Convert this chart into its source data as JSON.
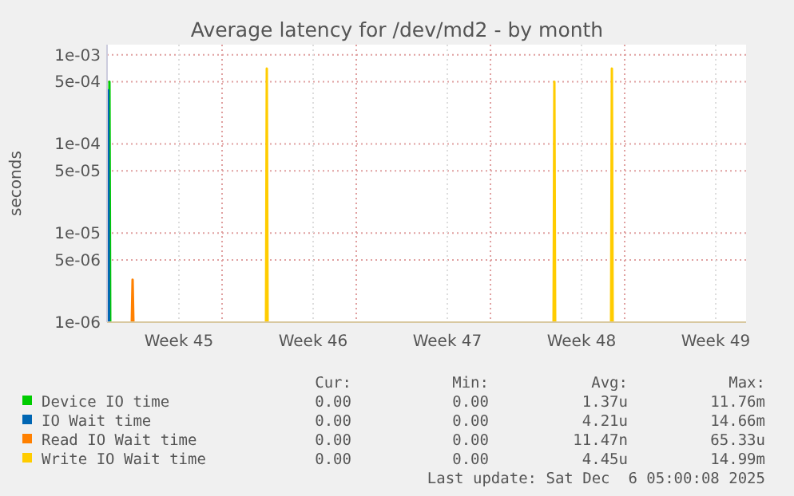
{
  "chart_data": {
    "type": "line",
    "title": "Average latency for /dev/md2 - by month",
    "ylabel": "seconds",
    "log": true,
    "grid": true,
    "legend": "bottom",
    "marker": "none",
    "line_style": "solid",
    "xlim": [
      "2025-11-04T00:00",
      "2025-12-07T08:00"
    ],
    "xticks": [
      {
        "value": "2025-11-07T18:00",
        "label": "Week 45"
      },
      {
        "value": "2025-11-10T00:00",
        "label": null
      },
      {
        "value": "2025-11-14T18:00",
        "label": "Week 46"
      },
      {
        "value": "2025-11-17T00:00",
        "label": null
      },
      {
        "value": "2025-11-21T18:00",
        "label": "Week 47"
      },
      {
        "value": "2025-11-24T00:00",
        "label": null
      },
      {
        "value": "2025-11-28T18:00",
        "label": "Week 48"
      },
      {
        "value": "2025-12-01T00:00",
        "label": null
      },
      {
        "value": "2025-12-05T18:00",
        "label": "Week 49"
      }
    ],
    "ylim": [
      1e-06,
      0.0013
    ],
    "yticks": [
      {
        "value": 1e-06,
        "label": "1e-06"
      },
      {
        "value": 5e-06,
        "label": "5e-06"
      },
      {
        "value": 1e-05,
        "label": "1e-05"
      },
      {
        "value": 5e-05,
        "label": "5e-05"
      },
      {
        "value": 0.0001,
        "label": "1e-04"
      },
      {
        "value": 0.0005,
        "label": "5e-04"
      },
      {
        "value": 0.001,
        "label": "1e-03"
      }
    ],
    "series": [
      {
        "name": "Device IO time",
        "color": "#00cc00",
        "x": [
          "2025-11-04T02:00",
          "2025-11-04T03:00",
          "2025-11-04T04:00"
        ],
        "values": [
          1e-06,
          0.0005,
          1e-06
        ]
      },
      {
        "name": "IO Wait time",
        "color": "#0066b3",
        "x": [
          "2025-11-04T00:30",
          "2025-11-04T01:30",
          "2025-11-04T02:30"
        ],
        "values": [
          1e-06,
          0.0004,
          1e-06
        ]
      },
      {
        "name": "Read IO Wait time",
        "color": "#ff8000",
        "x": [
          "2025-11-05T07:00",
          "2025-11-05T08:00",
          "2025-11-05T09:00"
        ],
        "values": [
          1e-06,
          3e-06,
          1e-06
        ]
      },
      {
        "name": "Write IO Wait time",
        "color": "#ffcc00",
        "x": [
          "2025-11-12T07:00",
          "2025-11-12T08:00",
          "2025-11-12T09:00",
          null,
          "2025-11-27T07:00",
          "2025-11-27T08:00",
          "2025-11-27T09:00",
          null,
          "2025-11-30T07:00",
          "2025-11-30T08:00",
          "2025-11-30T09:00"
        ],
        "values": [
          1e-06,
          0.0007,
          1e-06,
          null,
          1e-06,
          0.0005,
          1e-06,
          null,
          1e-06,
          0.0007,
          1e-06
        ]
      }
    ],
    "annotations": [
      "Cur:",
      "Min:",
      "Avg:",
      "Max:",
      "0.00",
      "0.00",
      "1.37u",
      "11.76m",
      "0.00",
      "0.00",
      "4.21u",
      "14.66m",
      "0.00",
      "0.00",
      "11.47n",
      "65.33u",
      "0.00",
      "0.00",
      "4.45u",
      "14.99m",
      "Last update: Sat Dec  6 05:00:08 2025"
    ]
  }
}
